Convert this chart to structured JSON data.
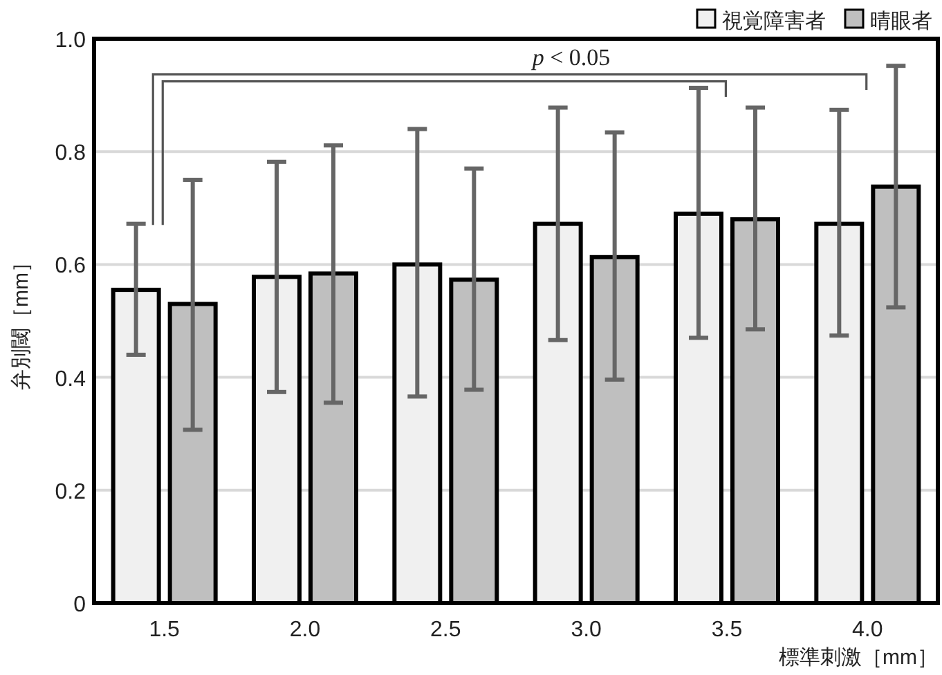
{
  "chart_data": {
    "type": "bar",
    "categories": [
      "1.5",
      "2.0",
      "2.5",
      "3.0",
      "3.5",
      "4.0"
    ],
    "xlabel": "標準刺激［mm］",
    "ylabel": "弁別閾［mm］",
    "ylim": [
      0,
      1.0
    ],
    "yticks": [
      0,
      0.2,
      0.4,
      0.6,
      0.8,
      {
        "value": 1.0,
        "label": "1.0"
      }
    ],
    "grid": "y",
    "legend": "top right",
    "annotations": [
      "p < 0.05"
    ],
    "series": [
      {
        "name": "視覚障害者",
        "color": "#f0f0f0",
        "values": [
          0.555,
          0.578,
          0.6,
          0.672,
          0.69,
          0.672
        ],
        "errors": [
          [
            0.44,
            0.672
          ],
          [
            0.374,
            0.782
          ],
          [
            0.366,
            0.84
          ],
          [
            0.466,
            0.878
          ],
          [
            0.47,
            0.913
          ],
          [
            0.474,
            0.874
          ]
        ]
      },
      {
        "name": "晴眼者",
        "color": "#bfbfbf",
        "values": [
          0.53,
          0.584,
          0.573,
          0.613,
          0.68,
          0.738
        ],
        "errors": [
          [
            0.307,
            0.75
          ],
          [
            0.355,
            0.811
          ],
          [
            0.378,
            0.77
          ],
          [
            0.396,
            0.834
          ],
          [
            0.485,
            0.878
          ],
          [
            0.524,
            0.952
          ]
        ]
      }
    ]
  }
}
